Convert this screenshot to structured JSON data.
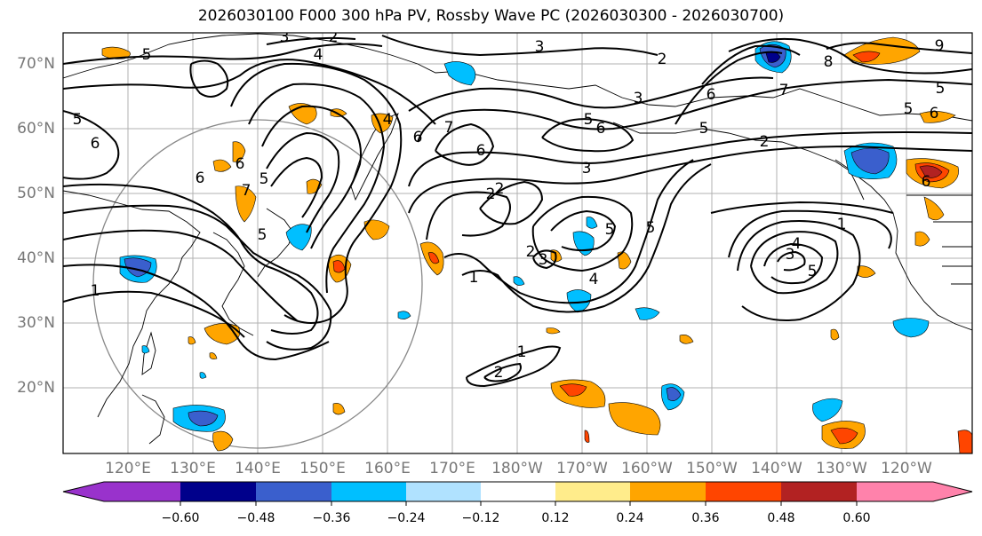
{
  "title": "2026030100 F000 300 hPa PV, Rossby Wave PC (2026030300 - 2026030700)",
  "lat_labels": [
    "70°N",
    "60°N",
    "50°N",
    "40°N",
    "30°N",
    "20°N"
  ],
  "lon_labels": [
    "120°E",
    "130°E",
    "140°E",
    "150°E",
    "160°E",
    "170°E",
    "180°W",
    "170°W",
    "160°W",
    "150°W",
    "140°W",
    "130°W",
    "120°W"
  ],
  "colorbar": {
    "ticks": [
      "−0.60",
      "−0.48",
      "−0.36",
      "−0.24",
      "−0.12",
      "0.12",
      "0.24",
      "0.36",
      "0.48",
      "0.60"
    ],
    "colors": [
      "#9932CC",
      "#00008B",
      "#3A5FCD",
      "#00BFFF",
      "#B0E2FF",
      "#FFFFFF",
      "#FFEC8B",
      "#FFA500",
      "#FF4500",
      "#B22222",
      "#FF82AB"
    ]
  },
  "contour_labels": [
    "5",
    "2",
    "3",
    "4",
    "3",
    "2",
    "9",
    "8",
    "7",
    "6",
    "5",
    "6",
    "5",
    "6",
    "3",
    "2",
    "6",
    "5",
    "5",
    "6",
    "7",
    "6",
    "5",
    "4",
    "6",
    "7",
    "2",
    "5",
    "3",
    "1",
    "4",
    "3",
    "5",
    "2",
    "1",
    "5",
    "2",
    "5",
    "6",
    "5",
    "6",
    "1",
    "2",
    "4",
    "1",
    "3"
  ]
}
